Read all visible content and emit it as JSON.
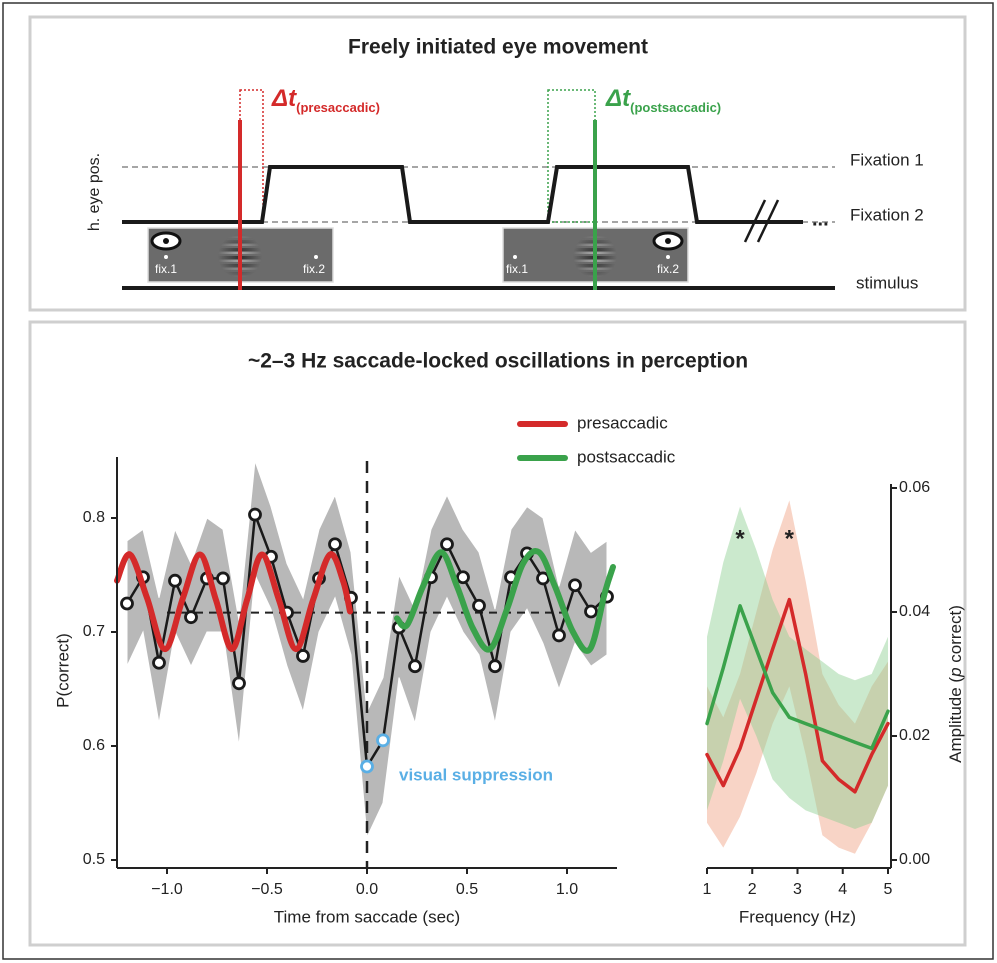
{
  "diagram": {
    "title": "Freely initiated eye movement",
    "ylabel": "h. eye pos.",
    "windows": [
      {
        "symbol": "Δt",
        "subscript": "(presaccadic)",
        "color": "#d42a2a"
      },
      {
        "symbol": "Δt",
        "subscript": "(postsaccadic)",
        "color": "#3aa24b"
      }
    ],
    "levels": [
      "Fixation 1",
      "Fixation 2"
    ],
    "ellipsis": "...",
    "stimulus_label": "stimulus",
    "screens": [
      {
        "labels": [
          "fix.1",
          "fix.2"
        ]
      },
      {
        "labels": [
          "fix.1",
          "fix.2"
        ]
      }
    ]
  },
  "panel_title": "~2–3 Hz saccade-locked oscillations in perception",
  "chart_data": [
    {
      "type": "line",
      "xlabel": "Time from saccade (sec)",
      "ylabel": "P(correct)",
      "xlim": [
        -1.25,
        1.25
      ],
      "xticks": [
        {
          "value": -1,
          "label": "−1.0"
        },
        {
          "value": -0.5,
          "label": "−0.5"
        },
        {
          "value": 0,
          "label": "0.0"
        },
        0.5,
        {
          "value": 1,
          "label": "1.0"
        }
      ],
      "ylim": [
        0.5,
        0.85
      ],
      "yticks": [
        0.5,
        0.6,
        0.7,
        0.8
      ],
      "hline": 0.717,
      "vline": 0,
      "legend": "top",
      "annotation": {
        "text": "visual suppression",
        "color": "#5aafe5"
      },
      "series": [
        {
          "color": "#1a1a1a",
          "markers": true,
          "band_color": "#b8b8b8",
          "x": [
            -1.2,
            -1.12,
            -1.04,
            -0.96,
            -0.88,
            -0.8,
            -0.72,
            -0.64,
            -0.56,
            -0.48,
            -0.4,
            -0.32,
            -0.24,
            -0.16,
            -0.08,
            0,
            0.08,
            0.16,
            0.24,
            0.32,
            0.4,
            0.48,
            0.56,
            0.64,
            0.72,
            0.8,
            0.88,
            0.96,
            1.04,
            1.12,
            1.2
          ],
          "values": [
            0.725,
            0.748,
            0.673,
            0.745,
            0.713,
            0.747,
            0.747,
            0.655,
            0.803,
            0.766,
            0.717,
            0.679,
            0.747,
            0.777,
            0.73,
            0.582,
            0.605,
            0.704,
            0.67,
            0.748,
            0.777,
            0.748,
            0.723,
            0.67,
            0.748,
            0.769,
            0.747,
            0.697,
            0.741,
            0.718,
            0.731
          ],
          "upper": [
            0.78,
            0.79,
            0.73,
            0.79,
            0.76,
            0.8,
            0.79,
            0.71,
            0.85,
            0.81,
            0.76,
            0.73,
            0.79,
            0.82,
            0.77,
            0.63,
            0.66,
            0.75,
            0.72,
            0.79,
            0.82,
            0.79,
            0.77,
            0.72,
            0.79,
            0.81,
            0.8,
            0.74,
            0.79,
            0.77,
            0.78
          ],
          "lower": [
            0.67,
            0.7,
            0.62,
            0.7,
            0.67,
            0.7,
            0.7,
            0.6,
            0.75,
            0.72,
            0.67,
            0.63,
            0.7,
            0.73,
            0.68,
            0.52,
            0.55,
            0.66,
            0.62,
            0.7,
            0.73,
            0.7,
            0.68,
            0.62,
            0.7,
            0.72,
            0.69,
            0.65,
            0.69,
            0.67,
            0.68
          ],
          "point_colors": [
            "#1a1a1a",
            "#1a1a1a",
            "#1a1a1a",
            "#1a1a1a",
            "#1a1a1a",
            "#1a1a1a",
            "#1a1a1a",
            "#1a1a1a",
            "#1a1a1a",
            "#1a1a1a",
            "#1a1a1a",
            "#1a1a1a",
            "#1a1a1a",
            "#1a1a1a",
            "#1a1a1a",
            "#5aafe5",
            "#5aafe5",
            "#1a1a1a",
            "#1a1a1a",
            "#1a1a1a",
            "#1a1a1a",
            "#1a1a1a",
            "#1a1a1a",
            "#1a1a1a",
            "#1a1a1a",
            "#1a1a1a",
            "#1a1a1a",
            "#1a1a1a",
            "#1a1a1a",
            "#1a1a1a",
            "#1a1a1a"
          ]
        },
        {
          "name": "presaccadic",
          "color": "#d42a2a",
          "smooth": true,
          "x": [
            -1.25,
            -1.185,
            -1.1,
            -1.01,
            -0.92,
            -0.835,
            -0.755,
            -0.675,
            -0.6,
            -0.525,
            -0.44,
            -0.355,
            -0.27,
            -0.185,
            -0.12,
            -0.085
          ],
          "values": [
            0.745,
            0.768,
            0.73,
            0.685,
            0.73,
            0.768,
            0.728,
            0.685,
            0.728,
            0.768,
            0.728,
            0.685,
            0.728,
            0.768,
            0.745,
            0.718
          ]
        },
        {
          "name": "postsaccadic",
          "color": "#3aa24b",
          "smooth": true,
          "x": [
            0.15,
            0.2,
            0.28,
            0.37,
            0.45,
            0.53,
            0.615,
            0.7,
            0.78,
            0.86,
            0.94,
            1.03,
            1.115,
            1.19,
            1.23
          ],
          "values": [
            0.712,
            0.706,
            0.74,
            0.77,
            0.74,
            0.703,
            0.685,
            0.72,
            0.76,
            0.77,
            0.74,
            0.7,
            0.685,
            0.735,
            0.757
          ]
        }
      ]
    },
    {
      "type": "line",
      "xlabel": "Frequency (Hz)",
      "ylabel": [
        "Amplitude (",
        "p",
        " correct)"
      ],
      "y_axis_side": "right",
      "xlim": [
        1,
        5
      ],
      "xticks": [
        1,
        2,
        3,
        4,
        5
      ],
      "ylim": [
        0,
        0.06
      ],
      "yticks": [
        {
          "value": 0,
          "label": "0.00"
        },
        {
          "value": 0.02,
          "label": "0.02"
        },
        {
          "value": 0.04,
          "label": "0.04"
        },
        {
          "value": 0.06,
          "label": "0.06"
        }
      ],
      "series": [
        {
          "color": "#d42a2a",
          "band_color": "#f0a080",
          "significance": "*",
          "x": [
            1,
            1.36,
            1.73,
            2.09,
            2.45,
            2.82,
            3.18,
            3.55,
            3.91,
            4.27,
            4.64,
            5
          ],
          "values": [
            0.017,
            0.012,
            0.018,
            0.026,
            0.034,
            0.042,
            0.03,
            0.016,
            0.013,
            0.011,
            0.017,
            0.022
          ],
          "upper": [
            0.028,
            0.023,
            0.03,
            0.04,
            0.05,
            0.058,
            0.045,
            0.03,
            0.025,
            0.022,
            0.028,
            0.032
          ],
          "lower": [
            0.006,
            0.002,
            0.007,
            0.014,
            0.022,
            0.028,
            0.017,
            0.004,
            0.002,
            0.001,
            0.006,
            0.012
          ]
        },
        {
          "color": "#3aa24b",
          "band_color": "#8ccf90",
          "significance": "*",
          "x": [
            1,
            1.36,
            1.73,
            2.09,
            2.45,
            2.82,
            3.18,
            3.55,
            3.91,
            4.27,
            4.64,
            5
          ],
          "values": [
            0.022,
            0.031,
            0.041,
            0.034,
            0.027,
            0.023,
            0.022,
            0.021,
            0.02,
            0.019,
            0.018,
            0.024
          ],
          "upper": [
            0.036,
            0.048,
            0.057,
            0.05,
            0.042,
            0.036,
            0.034,
            0.032,
            0.03,
            0.029,
            0.03,
            0.036
          ],
          "lower": [
            0.008,
            0.016,
            0.026,
            0.02,
            0.013,
            0.01,
            0.008,
            0.007,
            0.006,
            0.005,
            0.006,
            0.012
          ]
        }
      ]
    }
  ]
}
